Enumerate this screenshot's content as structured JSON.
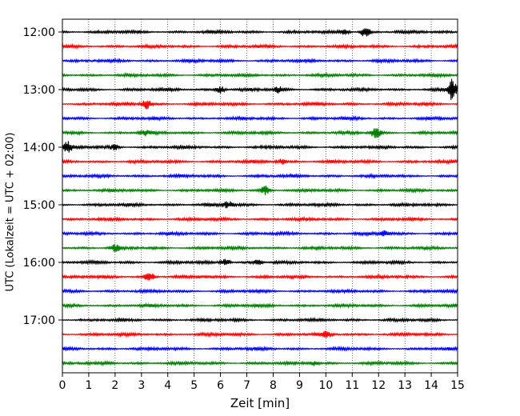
{
  "chart_data": {
    "type": "line",
    "title": "",
    "xlabel": "Zeit  [min]",
    "ylabel": "UTC (Lokalzeit = UTC + 02:00)",
    "xlim": [
      0,
      15
    ],
    "xticks": [
      0,
      1,
      2,
      3,
      4,
      5,
      6,
      7,
      8,
      9,
      10,
      11,
      12,
      13,
      14,
      15
    ],
    "ytick_labels": [
      "12:00",
      "13:00",
      "14:00",
      "15:00",
      "16:00",
      "17:00"
    ],
    "grid": "vertical dotted at each minute",
    "trace_interval_min": 15,
    "start": "12:00",
    "trace_colors": [
      "#000000",
      "#ff0000",
      "#0000ff",
      "#008000"
    ],
    "traces": [
      {
        "start": "12:00",
        "color": "#000000",
        "events": [
          {
            "x": 11.5,
            "amp": 6
          },
          {
            "x": 10.7,
            "amp": 3
          }
        ]
      },
      {
        "start": "12:15",
        "color": "#ff0000",
        "events": []
      },
      {
        "start": "12:30",
        "color": "#0000ff",
        "events": []
      },
      {
        "start": "12:45",
        "color": "#008000",
        "events": []
      },
      {
        "start": "13:00",
        "color": "#000000",
        "events": [
          {
            "x": 6.0,
            "amp": 4
          },
          {
            "x": 8.2,
            "amp": 3
          },
          {
            "x": 14.8,
            "amp": 13
          }
        ]
      },
      {
        "start": "13:15",
        "color": "#ff0000",
        "events": [
          {
            "x": 3.2,
            "amp": 6
          }
        ]
      },
      {
        "start": "13:30",
        "color": "#0000ff",
        "events": []
      },
      {
        "start": "13:45",
        "color": "#008000",
        "events": [
          {
            "x": 11.9,
            "amp": 7
          },
          {
            "x": 3.1,
            "amp": 3
          }
        ]
      },
      {
        "start": "14:00",
        "color": "#000000",
        "events": [
          {
            "x": 0.2,
            "amp": 6
          },
          {
            "x": 2.0,
            "amp": 3
          }
        ]
      },
      {
        "start": "14:15",
        "color": "#ff0000",
        "events": [
          {
            "x": 8.3,
            "amp": 3
          }
        ]
      },
      {
        "start": "14:30",
        "color": "#0000ff",
        "events": []
      },
      {
        "start": "14:45",
        "color": "#008000",
        "events": [
          {
            "x": 7.7,
            "amp": 5
          }
        ]
      },
      {
        "start": "15:00",
        "color": "#000000",
        "events": [
          {
            "x": 6.3,
            "amp": 4
          }
        ]
      },
      {
        "start": "15:15",
        "color": "#ff0000",
        "events": []
      },
      {
        "start": "15:30",
        "color": "#0000ff",
        "events": [
          {
            "x": 12.2,
            "amp": 3
          }
        ]
      },
      {
        "start": "15:45",
        "color": "#008000",
        "events": [
          {
            "x": 2.0,
            "amp": 4
          }
        ]
      },
      {
        "start": "16:00",
        "color": "#000000",
        "events": [
          {
            "x": 6.2,
            "amp": 5
          },
          {
            "x": 7.4,
            "amp": 3
          }
        ]
      },
      {
        "start": "16:15",
        "color": "#ff0000",
        "events": [
          {
            "x": 3.3,
            "amp": 5
          }
        ]
      },
      {
        "start": "16:30",
        "color": "#0000ff",
        "events": []
      },
      {
        "start": "16:45",
        "color": "#008000",
        "events": []
      },
      {
        "start": "17:00",
        "color": "#000000",
        "events": []
      },
      {
        "start": "17:15",
        "color": "#ff0000",
        "events": [
          {
            "x": 10.0,
            "amp": 3
          }
        ]
      },
      {
        "start": "17:30",
        "color": "#0000ff",
        "events": []
      },
      {
        "start": "17:45",
        "color": "#008000",
        "events": [
          {
            "x": 9.6,
            "amp": 3
          }
        ]
      }
    ]
  }
}
